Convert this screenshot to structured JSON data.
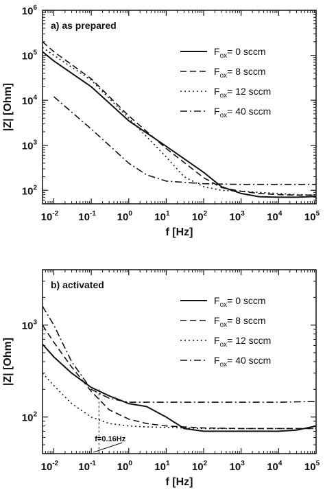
{
  "chart_data": [
    {
      "type": "line",
      "panel_title": "a) as prepared",
      "xlabel": "f [Hz]",
      "ylabel": "|Z| [Ohm]",
      "xscale": "log",
      "yscale": "log",
      "xlim": [
        0.005,
        100000
      ],
      "ylim": [
        50,
        1000000
      ],
      "grid": false,
      "legend_position": "top-right",
      "x_ticks": [
        {
          "base": "10",
          "exp": "-2",
          "value": 0.01
        },
        {
          "base": "10",
          "exp": "-1",
          "value": 0.1
        },
        {
          "base": "10",
          "exp": "0",
          "value": 1
        },
        {
          "base": "10",
          "exp": "1",
          "value": 10
        },
        {
          "base": "10",
          "exp": "2",
          "value": 100
        },
        {
          "base": "10",
          "exp": "3",
          "value": 1000
        },
        {
          "base": "10",
          "exp": "4",
          "value": 10000
        },
        {
          "base": "10",
          "exp": "5",
          "value": 100000
        }
      ],
      "y_ticks": [
        {
          "base": "10",
          "exp": "2",
          "value": 100
        },
        {
          "base": "10",
          "exp": "3",
          "value": 1000
        },
        {
          "base": "10",
          "exp": "4",
          "value": 10000
        },
        {
          "base": "10",
          "exp": "5",
          "value": 100000
        },
        {
          "base": "10",
          "exp": "6",
          "value": 1000000
        }
      ],
      "series": [
        {
          "legend_main": "F",
          "legend_sub": "ox",
          "legend_rest": "= 0 sccm",
          "dash": "solid",
          "x": [
            0.005,
            0.01,
            0.1,
            1,
            10,
            100,
            300,
            1000,
            3000,
            10000,
            30000,
            100000
          ],
          "y": [
            120000,
            75000,
            20000,
            3500,
            950,
            250,
            120,
            85,
            72,
            70,
            70,
            73
          ]
        },
        {
          "legend_main": "F",
          "legend_sub": "ox",
          "legend_rest": "= 8 sccm",
          "dash": "dashed",
          "x": [
            0.005,
            0.01,
            0.1,
            1,
            10,
            100,
            300,
            1000,
            3000,
            10000,
            30000,
            100000
          ],
          "y": [
            200000,
            120000,
            30000,
            4500,
            850,
            190,
            115,
            95,
            85,
            80,
            78,
            78
          ]
        },
        {
          "legend_main": "F",
          "legend_sub": "ox",
          "legend_rest": "= 12 sccm",
          "dash": "dotted",
          "x": [
            0.005,
            0.01,
            0.1,
            1,
            10,
            30,
            100,
            300,
            1000,
            3000,
            10000,
            30000,
            100000
          ],
          "y": [
            150000,
            100000,
            28000,
            4000,
            550,
            200,
            120,
            100,
            95,
            90,
            85,
            80,
            78
          ]
        },
        {
          "legend_main": "F",
          "legend_sub": "ox",
          "legend_rest": "= 40 sccm",
          "dash": "dashdot",
          "x": [
            0.01,
            0.1,
            1,
            3,
            10,
            100,
            1000,
            10000,
            100000
          ],
          "y": [
            12000,
            2300,
            400,
            220,
            160,
            140,
            135,
            135,
            135
          ]
        }
      ]
    },
    {
      "type": "line",
      "panel_title": "b) activated",
      "xlabel": "f [Hz]",
      "ylabel": "|Z| [Ohm]",
      "xscale": "log",
      "yscale": "log",
      "xlim": [
        0.005,
        100000
      ],
      "ylim": [
        40,
        4000
      ],
      "grid": false,
      "legend_position": "top-right",
      "annotation": "f=0.16Hz",
      "annotation_x": 0.16,
      "x_ticks": [
        {
          "base": "10",
          "exp": "-2",
          "value": 0.01
        },
        {
          "base": "10",
          "exp": "-1",
          "value": 0.1
        },
        {
          "base": "10",
          "exp": "0",
          "value": 1
        },
        {
          "base": "10",
          "exp": "1",
          "value": 10
        },
        {
          "base": "10",
          "exp": "2",
          "value": 100
        },
        {
          "base": "10",
          "exp": "3",
          "value": 1000
        },
        {
          "base": "10",
          "exp": "4",
          "value": 10000
        },
        {
          "base": "10",
          "exp": "5",
          "value": 100000
        }
      ],
      "y_ticks": [
        {
          "base": "10",
          "exp": "2",
          "value": 100
        },
        {
          "base": "10",
          "exp": "3",
          "value": 1000
        }
      ],
      "series": [
        {
          "legend_main": "F",
          "legend_sub": "ox",
          "legend_rest": "= 0 sccm",
          "dash": "solid",
          "x": [
            0.005,
            0.01,
            0.03,
            0.1,
            0.3,
            1,
            3,
            10,
            30,
            100,
            1000,
            10000,
            30000,
            100000
          ],
          "y": [
            620,
            450,
            300,
            210,
            170,
            140,
            130,
            100,
            75,
            70,
            70,
            70,
            72,
            80
          ]
        },
        {
          "legend_main": "F",
          "legend_sub": "ox",
          "legend_rest": "= 8 sccm",
          "dash": "dashed",
          "x": [
            0.005,
            0.01,
            0.03,
            0.1,
            0.3,
            1,
            3,
            10,
            100,
            1000,
            10000,
            100000
          ],
          "y": [
            1000,
            650,
            350,
            190,
            120,
            95,
            85,
            80,
            76,
            75,
            75,
            75
          ]
        },
        {
          "legend_main": "F",
          "legend_sub": "ox",
          "legend_rest": "= 12 sccm",
          "dash": "dotted",
          "x": [
            0.005,
            0.01,
            0.03,
            0.1,
            0.3,
            1,
            3,
            10,
            100,
            1000,
            10000,
            100000
          ],
          "y": [
            300,
            220,
            140,
            100,
            85,
            80,
            78,
            77,
            75,
            75,
            75,
            75
          ]
        },
        {
          "legend_main": "F",
          "legend_sub": "ox",
          "legend_rest": "= 40 sccm",
          "dash": "dashdot",
          "x": [
            0.005,
            0.01,
            0.03,
            0.1,
            0.3,
            1,
            3,
            10,
            100,
            1000,
            10000,
            100000
          ],
          "y": [
            1600,
            1000,
            400,
            200,
            160,
            145,
            145,
            145,
            145,
            145,
            145,
            148
          ]
        }
      ]
    }
  ]
}
